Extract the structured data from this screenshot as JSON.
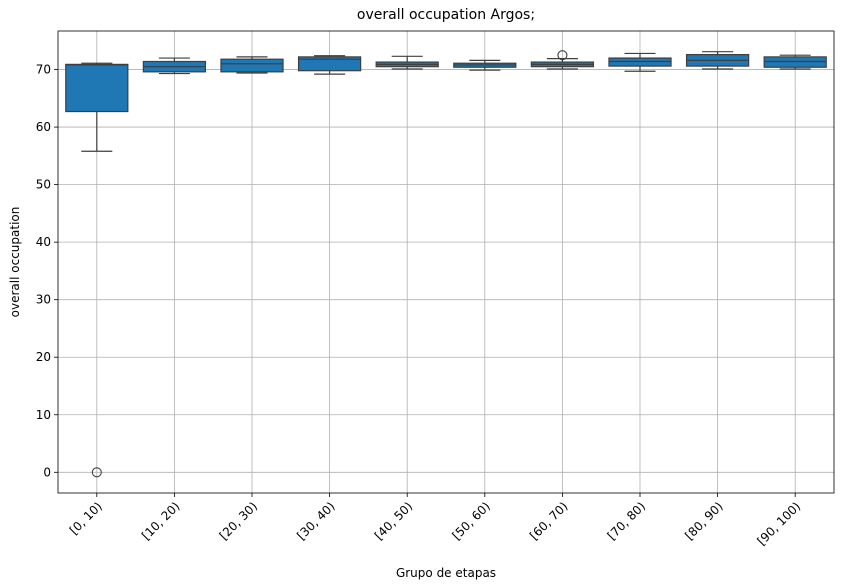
{
  "chart_data": {
    "type": "box",
    "title": "overall occupation Argos;",
    "xlabel": "Grupo de etapas",
    "ylabel": "overall occupation",
    "ylim": [
      -3.6,
      76.7
    ],
    "yticks": [
      0,
      10,
      20,
      30,
      40,
      50,
      60,
      70
    ],
    "grid": true,
    "box_color": "#1f77b4",
    "categories": [
      "[0, 10)",
      "[10, 20)",
      "[20, 30)",
      "[30, 40)",
      "[40, 50)",
      "[50, 60)",
      "[60, 70)",
      "[70, 80)",
      "[80, 90)",
      "[90, 100)"
    ],
    "boxes": [
      {
        "whisker_low": 55.8,
        "q1": 62.7,
        "median": 70.8,
        "q3": 70.9,
        "whisker_high": 71.1,
        "outliers": [
          0
        ]
      },
      {
        "whisker_low": 69.3,
        "q1": 69.6,
        "median": 70.5,
        "q3": 71.4,
        "whisker_high": 72.0,
        "outliers": []
      },
      {
        "whisker_low": 69.4,
        "q1": 69.6,
        "median": 71.0,
        "q3": 71.8,
        "whisker_high": 72.2,
        "outliers": []
      },
      {
        "whisker_low": 69.2,
        "q1": 69.8,
        "median": 71.8,
        "q3": 72.2,
        "whisker_high": 72.4,
        "outliers": []
      },
      {
        "whisker_low": 70.1,
        "q1": 70.5,
        "median": 70.9,
        "q3": 71.3,
        "whisker_high": 72.3,
        "outliers": []
      },
      {
        "whisker_low": 69.9,
        "q1": 70.4,
        "median": 70.8,
        "q3": 71.1,
        "whisker_high": 71.6,
        "outliers": []
      },
      {
        "whisker_low": 70.1,
        "q1": 70.5,
        "median": 70.9,
        "q3": 71.3,
        "whisker_high": 71.9,
        "outliers": [
          72.5
        ]
      },
      {
        "whisker_low": 69.7,
        "q1": 70.6,
        "median": 71.4,
        "q3": 72.0,
        "whisker_high": 72.8,
        "outliers": []
      },
      {
        "whisker_low": 70.1,
        "q1": 70.6,
        "median": 71.6,
        "q3": 72.6,
        "whisker_high": 73.1,
        "outliers": []
      },
      {
        "whisker_low": 70.1,
        "q1": 70.4,
        "median": 71.4,
        "q3": 72.2,
        "whisker_high": 72.5,
        "outliers": []
      }
    ]
  }
}
